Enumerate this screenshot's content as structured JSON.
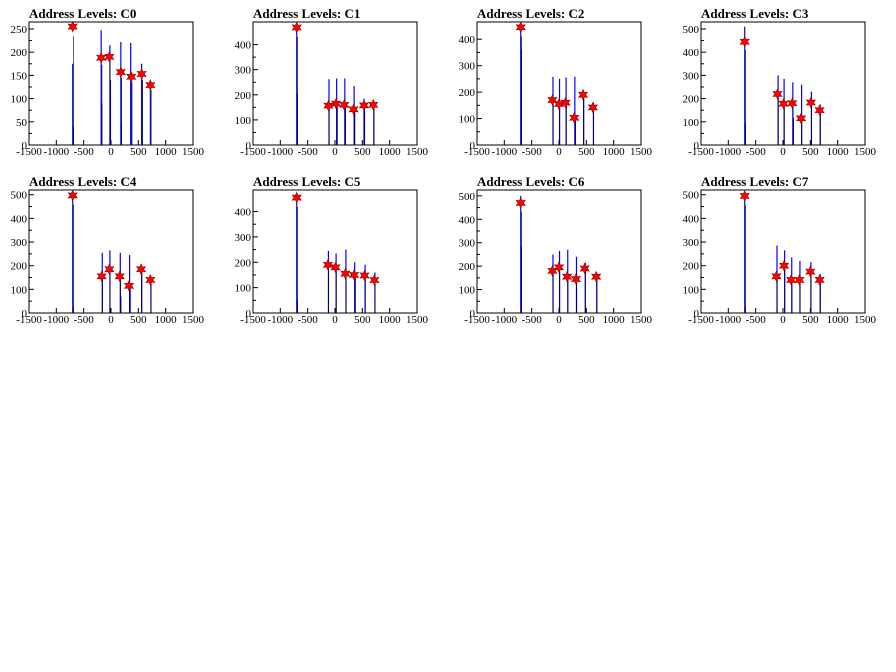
{
  "chart_data": [
    {
      "type": "histogram",
      "title": "Address Levels: C0",
      "x_ticks": [
        -1500,
        -1000,
        -500,
        0,
        500,
        1000,
        1500
      ],
      "y_ticks": [
        0,
        50,
        100,
        150,
        200,
        250
      ],
      "xlim": [
        -1500,
        1500
      ],
      "ylim": [
        0,
        265
      ],
      "histogram_color": "#0000ff",
      "marker_color": "#ff0000",
      "peaks": [
        {
          "x": -700,
          "y": 255
        },
        {
          "x": -180,
          "y": 188
        },
        {
          "x": -30,
          "y": 190
        },
        {
          "x": 180,
          "y": 157
        },
        {
          "x": 370,
          "y": 147
        },
        {
          "x": 560,
          "y": 153
        },
        {
          "x": 720,
          "y": 129
        }
      ],
      "lines": [
        {
          "x": -700,
          "y": 175
        },
        {
          "x": -690,
          "y": 40
        },
        {
          "x": -180,
          "y": 247
        },
        {
          "x": -170,
          "y": 90
        },
        {
          "x": -20,
          "y": 215
        },
        {
          "x": -10,
          "y": 140
        },
        {
          "x": 180,
          "y": 222
        },
        {
          "x": 190,
          "y": 45
        },
        {
          "x": 360,
          "y": 220
        },
        {
          "x": 370,
          "y": 150
        },
        {
          "x": 560,
          "y": 175
        },
        {
          "x": 570,
          "y": 140
        },
        {
          "x": 720,
          "y": 120
        }
      ]
    },
    {
      "type": "histogram",
      "title": "Address Levels: C1",
      "x_ticks": [
        -1500,
        -1000,
        -500,
        0,
        500,
        1000,
        1500
      ],
      "y_ticks": [
        0,
        100,
        200,
        300,
        400
      ],
      "xlim": [
        -1500,
        1500
      ],
      "ylim": [
        0,
        490
      ],
      "histogram_color": "#0000ff",
      "marker_color": "#ff0000",
      "peaks": [
        {
          "x": -700,
          "y": 468
        },
        {
          "x": -120,
          "y": 157
        },
        {
          "x": 20,
          "y": 165
        },
        {
          "x": 170,
          "y": 160
        },
        {
          "x": 340,
          "y": 142
        },
        {
          "x": 530,
          "y": 158
        },
        {
          "x": 700,
          "y": 160
        }
      ],
      "lines": [
        {
          "x": -700,
          "y": 470
        },
        {
          "x": -690,
          "y": 205
        },
        {
          "x": -110,
          "y": 262
        },
        {
          "x": 30,
          "y": 265
        },
        {
          "x": 40,
          "y": 170
        },
        {
          "x": 180,
          "y": 265
        },
        {
          "x": 190,
          "y": 155
        },
        {
          "x": 350,
          "y": 235
        },
        {
          "x": 360,
          "y": 140
        },
        {
          "x": 530,
          "y": 185
        },
        {
          "x": 710,
          "y": 170
        }
      ]
    },
    {
      "type": "histogram",
      "title": "Address Levels: C2",
      "x_ticks": [
        -1500,
        -1000,
        -500,
        0,
        500,
        1000,
        1500
      ],
      "y_ticks": [
        0,
        100,
        200,
        300,
        400
      ],
      "xlim": [
        -1500,
        1500
      ],
      "ylim": [
        0,
        465
      ],
      "histogram_color": "#0000ff",
      "marker_color": "#ff0000",
      "peaks": [
        {
          "x": -700,
          "y": 445
        },
        {
          "x": -120,
          "y": 170
        },
        {
          "x": 0,
          "y": 155
        },
        {
          "x": 120,
          "y": 160
        },
        {
          "x": 280,
          "y": 103
        },
        {
          "x": 440,
          "y": 190
        },
        {
          "x": 620,
          "y": 142
        }
      ],
      "lines": [
        {
          "x": -700,
          "y": 445
        },
        {
          "x": -690,
          "y": 360
        },
        {
          "x": -110,
          "y": 258
        },
        {
          "x": 10,
          "y": 250
        },
        {
          "x": 130,
          "y": 255
        },
        {
          "x": 290,
          "y": 258
        },
        {
          "x": 300,
          "y": 110
        },
        {
          "x": 450,
          "y": 195
        },
        {
          "x": 630,
          "y": 160
        }
      ]
    },
    {
      "type": "histogram",
      "title": "Address Levels: C3",
      "x_ticks": [
        -1500,
        -1000,
        -500,
        0,
        500,
        1000,
        1500
      ],
      "y_ticks": [
        0,
        100,
        200,
        300,
        400,
        500
      ],
      "xlim": [
        -1500,
        1500
      ],
      "ylim": [
        0,
        530
      ],
      "histogram_color": "#0000ff",
      "marker_color": "#ff0000",
      "peaks": [
        {
          "x": -700,
          "y": 445
        },
        {
          "x": -100,
          "y": 220
        },
        {
          "x": 10,
          "y": 178
        },
        {
          "x": 170,
          "y": 180
        },
        {
          "x": 330,
          "y": 115
        },
        {
          "x": 510,
          "y": 183
        },
        {
          "x": 670,
          "y": 150
        }
      ],
      "lines": [
        {
          "x": -700,
          "y": 510
        },
        {
          "x": -690,
          "y": 95
        },
        {
          "x": -90,
          "y": 300
        },
        {
          "x": 20,
          "y": 285
        },
        {
          "x": 180,
          "y": 270
        },
        {
          "x": 190,
          "y": 115
        },
        {
          "x": 340,
          "y": 260
        },
        {
          "x": 520,
          "y": 230
        },
        {
          "x": 680,
          "y": 175
        }
      ]
    },
    {
      "type": "histogram",
      "title": "Address Levels: C4",
      "x_ticks": [
        -1500,
        -1000,
        -500,
        0,
        500,
        1000,
        1500
      ],
      "y_ticks": [
        0,
        100,
        200,
        300,
        400,
        500
      ],
      "xlim": [
        -1500,
        1500
      ],
      "ylim": [
        0,
        520
      ],
      "histogram_color": "#0000ff",
      "marker_color": "#ff0000",
      "peaks": [
        {
          "x": -700,
          "y": 497
        },
        {
          "x": -170,
          "y": 155
        },
        {
          "x": -30,
          "y": 185
        },
        {
          "x": 160,
          "y": 155
        },
        {
          "x": 330,
          "y": 115
        },
        {
          "x": 550,
          "y": 185
        },
        {
          "x": 720,
          "y": 140
        }
      ],
      "lines": [
        {
          "x": -700,
          "y": 500
        },
        {
          "x": -690,
          "y": 25
        },
        {
          "x": -160,
          "y": 255
        },
        {
          "x": -20,
          "y": 265
        },
        {
          "x": 170,
          "y": 255
        },
        {
          "x": 180,
          "y": 70
        },
        {
          "x": 340,
          "y": 245
        },
        {
          "x": 350,
          "y": 120
        },
        {
          "x": 560,
          "y": 190
        },
        {
          "x": 730,
          "y": 150
        }
      ]
    },
    {
      "type": "histogram",
      "title": "Address Levels: C5",
      "x_ticks": [
        -1500,
        -1000,
        -500,
        0,
        500,
        1000,
        1500
      ],
      "y_ticks": [
        0,
        100,
        200,
        300,
        400
      ],
      "xlim": [
        -1500,
        1500
      ],
      "ylim": [
        0,
        485
      ],
      "histogram_color": "#0000ff",
      "marker_color": "#ff0000",
      "peaks": [
        {
          "x": -700,
          "y": 455
        },
        {
          "x": -130,
          "y": 190
        },
        {
          "x": 10,
          "y": 180
        },
        {
          "x": 190,
          "y": 155
        },
        {
          "x": 350,
          "y": 150
        },
        {
          "x": 540,
          "y": 148
        },
        {
          "x": 720,
          "y": 130
        }
      ],
      "lines": [
        {
          "x": -700,
          "y": 455
        },
        {
          "x": -690,
          "y": 50
        },
        {
          "x": -120,
          "y": 245
        },
        {
          "x": 20,
          "y": 235
        },
        {
          "x": 200,
          "y": 250
        },
        {
          "x": 360,
          "y": 200
        },
        {
          "x": 370,
          "y": 150
        },
        {
          "x": 550,
          "y": 190
        },
        {
          "x": 730,
          "y": 160
        }
      ]
    },
    {
      "type": "histogram",
      "title": "Address Levels: C6",
      "x_ticks": [
        -1500,
        -1000,
        -500,
        0,
        500,
        1000,
        1500
      ],
      "y_ticks": [
        0,
        100,
        200,
        300,
        400,
        500
      ],
      "xlim": [
        -1500,
        1500
      ],
      "ylim": [
        0,
        525
      ],
      "histogram_color": "#0000ff",
      "marker_color": "#ff0000",
      "peaks": [
        {
          "x": -700,
          "y": 470
        },
        {
          "x": -120,
          "y": 180
        },
        {
          "x": 0,
          "y": 195
        },
        {
          "x": 150,
          "y": 155
        },
        {
          "x": 310,
          "y": 145
        },
        {
          "x": 470,
          "y": 190
        },
        {
          "x": 680,
          "y": 155
        }
      ],
      "lines": [
        {
          "x": -700,
          "y": 500
        },
        {
          "x": -690,
          "y": 285
        },
        {
          "x": -110,
          "y": 250
        },
        {
          "x": 10,
          "y": 265
        },
        {
          "x": 160,
          "y": 270
        },
        {
          "x": 320,
          "y": 240
        },
        {
          "x": 480,
          "y": 215
        },
        {
          "x": 690,
          "y": 160
        }
      ]
    },
    {
      "type": "histogram",
      "title": "Address Levels: C7",
      "x_ticks": [
        -1500,
        -1000,
        -500,
        0,
        500,
        1000,
        1500
      ],
      "y_ticks": [
        0,
        100,
        200,
        300,
        400,
        500
      ],
      "xlim": [
        -1500,
        1500
      ],
      "ylim": [
        0,
        520
      ],
      "histogram_color": "#0000ff",
      "marker_color": "#ff0000",
      "peaks": [
        {
          "x": -700,
          "y": 495
        },
        {
          "x": -120,
          "y": 155
        },
        {
          "x": 20,
          "y": 200
        },
        {
          "x": 150,
          "y": 140
        },
        {
          "x": 300,
          "y": 140
        },
        {
          "x": 500,
          "y": 175
        },
        {
          "x": 670,
          "y": 140
        }
      ],
      "lines": [
        {
          "x": -700,
          "y": 495
        },
        {
          "x": -690,
          "y": 25
        },
        {
          "x": -110,
          "y": 285
        },
        {
          "x": 30,
          "y": 265
        },
        {
          "x": 160,
          "y": 235
        },
        {
          "x": 310,
          "y": 220
        },
        {
          "x": 510,
          "y": 215
        },
        {
          "x": 680,
          "y": 165
        }
      ]
    }
  ]
}
